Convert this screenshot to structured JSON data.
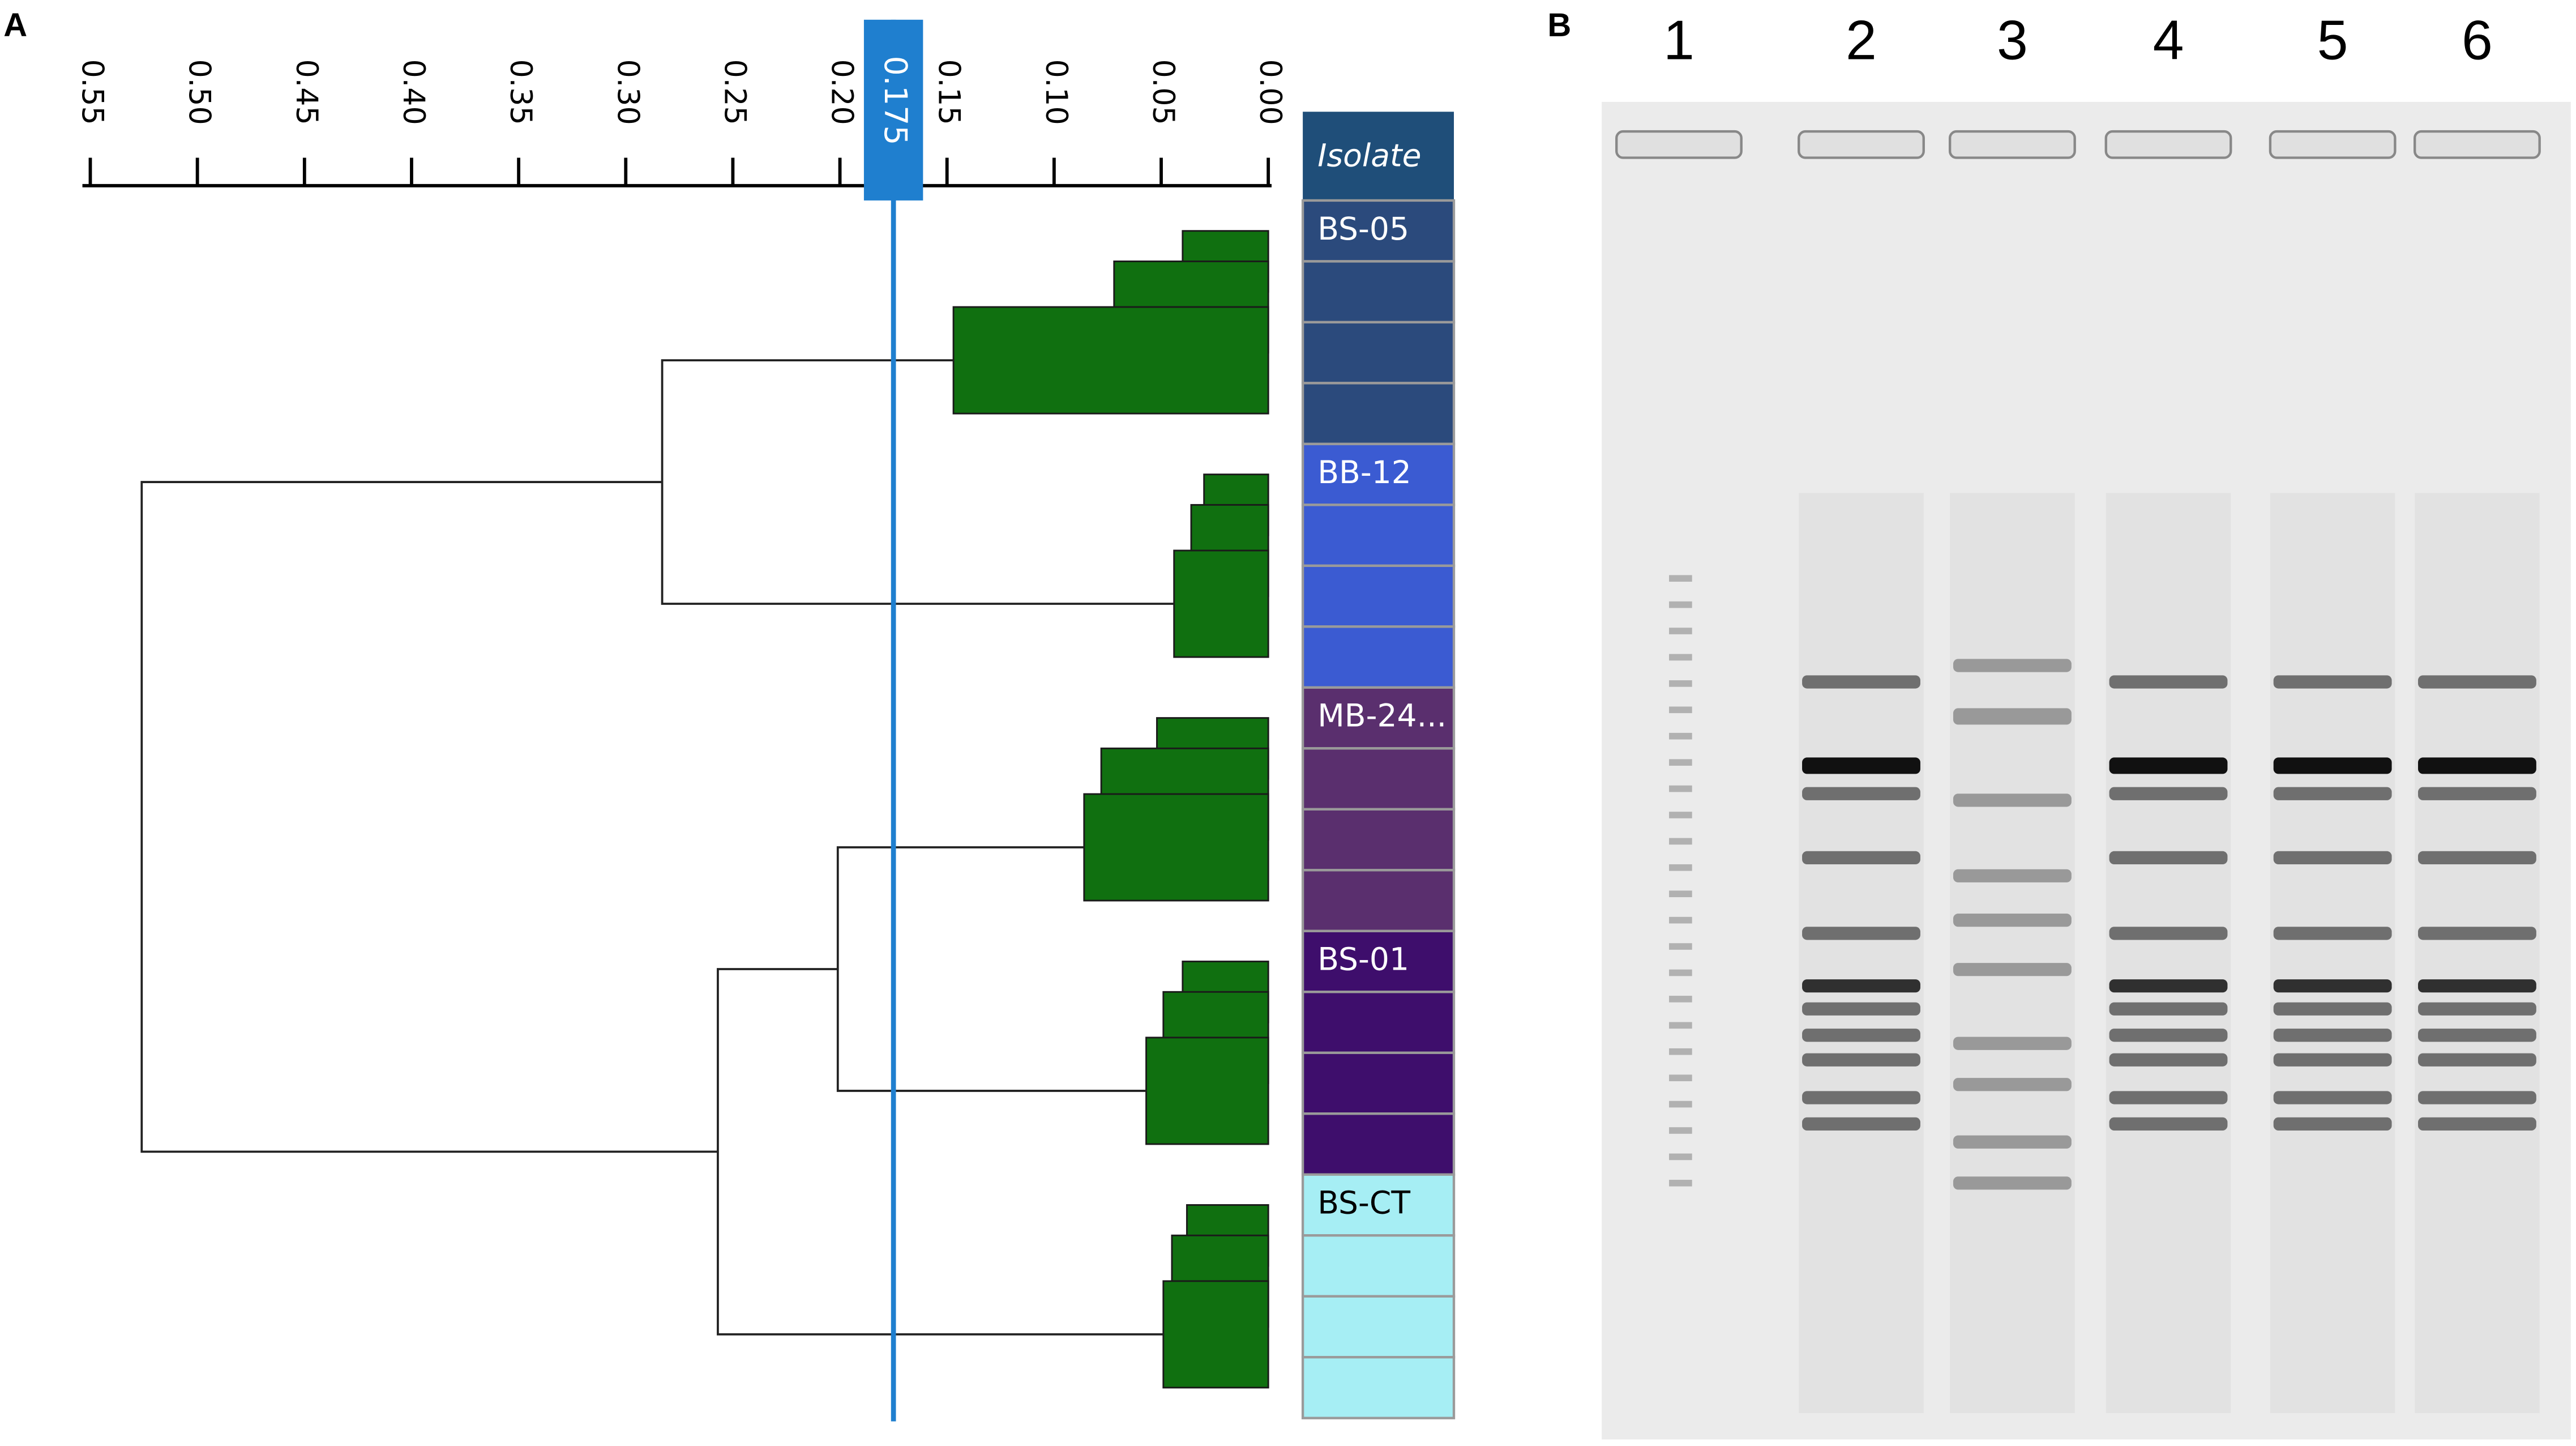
{
  "panel_a": {
    "label": "A",
    "axis": {
      "range": [
        0.55,
        0
      ],
      "ticks": [
        {
          "value": 0.55,
          "label": "0.55"
        },
        {
          "value": 0.5,
          "label": "0.50"
        },
        {
          "value": 0.45,
          "label": "0.45"
        },
        {
          "value": 0.4,
          "label": "0.40"
        },
        {
          "value": 0.35,
          "label": "0.35"
        },
        {
          "value": 0.3,
          "label": "0.30"
        },
        {
          "value": 0.25,
          "label": "0.25"
        },
        {
          "value": 0.2,
          "label": "0.20"
        },
        {
          "value": 0.15,
          "label": "0.15"
        },
        {
          "value": 0.1,
          "label": "0.10"
        },
        {
          "value": 0.05,
          "label": "0.05"
        },
        {
          "value": 0,
          "label": "0.00"
        }
      ]
    },
    "cutoff": 0.175,
    "column_header": "Isolate",
    "groups": [
      {
        "name": "BS-05",
        "color": "#2b4a7c",
        "merges": [
          0.04,
          0.072,
          0.147
        ]
      },
      {
        "name": "BB-12",
        "color": "#3b5bd2",
        "merges": [
          0.03,
          0.036,
          0.044
        ]
      },
      {
        "name": "MB-24...",
        "color": "#5a2f6e",
        "merges": [
          0.052,
          0.078,
          0.086
        ]
      },
      {
        "name": "BS-01",
        "color": "#3e0e6c",
        "merges": [
          0.04,
          0.049,
          0.057
        ]
      },
      {
        "name": "BS-CT",
        "color": "#a6eef4",
        "merges": [
          0.038,
          0.045,
          0.049
        ]
      }
    ],
    "joins": [
      0.283,
      0.201,
      0.257,
      0.526
    ]
  },
  "panel_b": {
    "label": "B",
    "lanes": [
      "1",
      "2",
      "3",
      "4",
      "5",
      "6"
    ]
  }
}
